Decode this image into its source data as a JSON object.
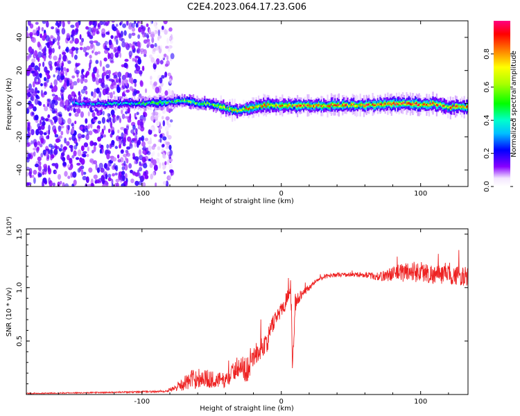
{
  "title": "C2E4.2023.064.17.23.G06",
  "colors": {
    "snr_line": "#ee2222",
    "axis": "#000000"
  },
  "chart_data": [
    {
      "type": "heatmap",
      "title": "C2E4.2023.064.17.23.G06",
      "xlabel": "Height of straight line (km)",
      "ylabel": "Frequency (Hz)",
      "xlim": [
        -183,
        134
      ],
      "ylim": [
        -50,
        50
      ],
      "x_ticks": [
        -100,
        0,
        100
      ],
      "y_ticks": [
        -40,
        -20,
        0,
        20,
        40
      ],
      "colorbar": {
        "label": "Normalized spectral amplitude",
        "range": [
          0,
          1
        ],
        "ticks": [
          "0.0",
          "0.2",
          "0.4",
          "0.6",
          "0.8"
        ],
        "tick_values": [
          0,
          0.2,
          0.4,
          0.6,
          0.8
        ],
        "colormap": "rainbow"
      },
      "signal_track": {
        "x": [
          -140,
          -100,
          -80,
          -70,
          -60,
          -50,
          -40,
          -35,
          -30,
          -20,
          -10,
          0,
          20,
          40,
          60,
          80,
          95,
          100,
          110,
          120,
          134
        ],
        "freq": [
          0,
          0,
          1,
          2,
          0,
          0,
          -3,
          -4,
          -4,
          -2,
          -1,
          -1,
          -1,
          -1,
          -1,
          0,
          0,
          -1,
          0,
          -2,
          -2
        ],
        "amp": [
          0.25,
          0.35,
          0.4,
          0.45,
          0.45,
          0.5,
          0.6,
          0.6,
          0.6,
          0.65,
          0.7,
          0.7,
          0.72,
          0.72,
          0.72,
          0.75,
          0.85,
          0.8,
          0.75,
          0.7,
          0.7
        ]
      },
      "noise_region": {
        "x_range": [
          -183,
          -78
        ]
      }
    },
    {
      "type": "line",
      "xlabel": "Height of straight line (km)",
      "ylabel": "SNR (10 * v/v)",
      "y_multiplier": "(x10⁴)",
      "xlim": [
        -183,
        134
      ],
      "ylim": [
        0,
        1.55
      ],
      "x_ticks": [
        -100,
        0,
        100
      ],
      "y_ticks": [
        0.5,
        1.0,
        1.5
      ],
      "y_tick_labels": [
        "0.5",
        "1.0",
        "1.5"
      ],
      "series": [
        {
          "name": "SNR",
          "x": [
            -183,
            -150,
            -120,
            -100,
            -85,
            -75,
            -68,
            -60,
            -50,
            -40,
            -30,
            -25,
            -20,
            -15,
            -10,
            -5,
            0,
            3,
            5,
            7,
            8,
            10,
            12,
            15,
            20,
            25,
            30,
            40,
            50,
            60,
            70,
            80,
            90,
            100,
            110,
            120,
            134
          ],
          "y": [
            0.01,
            0.015,
            0.02,
            0.025,
            0.03,
            0.06,
            0.12,
            0.16,
            0.14,
            0.13,
            0.28,
            0.22,
            0.36,
            0.42,
            0.5,
            0.7,
            0.8,
            0.85,
            1.0,
            0.95,
            0.3,
            0.85,
            0.9,
            0.95,
            1.0,
            1.06,
            1.1,
            1.12,
            1.12,
            1.12,
            1.1,
            1.13,
            1.15,
            1.15,
            1.12,
            1.12,
            1.1
          ],
          "noise": [
            0.005,
            0.005,
            0.006,
            0.008,
            0.01,
            0.03,
            0.08,
            0.1,
            0.08,
            0.07,
            0.1,
            0.12,
            0.1,
            0.1,
            0.1,
            0.08,
            0.07,
            0.1,
            0.1,
            0.15,
            0.1,
            0.08,
            0.06,
            0.04,
            0.03,
            0.02,
            0.02,
            0.02,
            0.02,
            0.025,
            0.04,
            0.07,
            0.1,
            0.1,
            0.09,
            0.09,
            0.09
          ]
        }
      ]
    }
  ]
}
